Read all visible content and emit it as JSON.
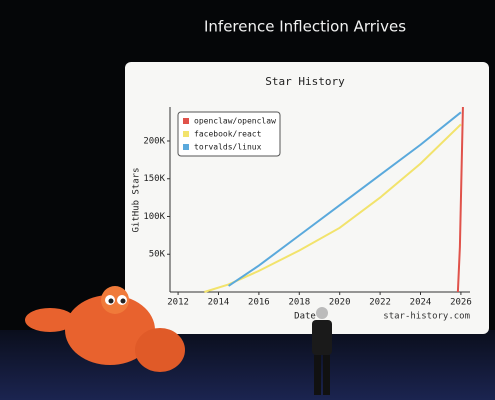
{
  "slide": {
    "title": "Inference Inflection Arrives"
  },
  "chart_data": {
    "type": "line",
    "title": "Star History",
    "x_label": "Date",
    "y_label": "GitHub Stars",
    "watermark": "star-history.com",
    "xlim": [
      2011.6,
      2026.45
    ],
    "xticks": [
      2012,
      2014,
      2016,
      2018,
      2020,
      2022,
      2024,
      2026
    ],
    "ylim": [
      0,
      245000
    ],
    "yticks": [
      {
        "value": 50000,
        "label": "50K"
      },
      {
        "value": 100000,
        "label": "100K"
      },
      {
        "value": 150000,
        "label": "150K"
      },
      {
        "value": 200000,
        "label": "200K"
      }
    ],
    "legend": "top-left",
    "series": [
      {
        "name": "openclaw/openclaw",
        "color": "#e0524a",
        "x": [
          2025.85,
          2025.95,
          2026.1
        ],
        "values": [
          0,
          60000,
          245000
        ]
      },
      {
        "name": "facebook/react",
        "color": "#f2e36c",
        "x": [
          2013.3,
          2014.5,
          2016,
          2018,
          2020,
          2022,
          2024,
          2026
        ],
        "values": [
          0,
          10000,
          28000,
          55000,
          85000,
          125000,
          170000,
          222000
        ]
      },
      {
        "name": "torvalds/linux",
        "color": "#5aa9dc",
        "x": [
          2014.5,
          2016,
          2018,
          2020,
          2022,
          2024,
          2026
        ],
        "values": [
          8000,
          35000,
          75000,
          115000,
          155000,
          195000,
          238000
        ]
      }
    ]
  }
}
